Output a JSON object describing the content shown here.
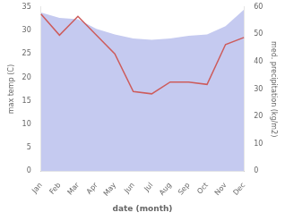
{
  "chart_data": {
    "type": "line",
    "categories": [
      "Jan",
      "Feb",
      "Mar",
      "Apr",
      "May",
      "Jun",
      "Jul",
      "Aug",
      "Sep",
      "Oct",
      "Nov",
      "Dec"
    ],
    "series": [
      {
        "color": "#cd5c5c",
        "marker": "none",
        "values": [
          33.5,
          29.0,
          33.0,
          29.0,
          25.0,
          17.0,
          16.5,
          19.0,
          19.0,
          18.5,
          27.0,
          28.5
        ]
      },
      {
        "type": "area",
        "axis": "y2",
        "color": "#c5caf0",
        "values": [
          58.0,
          56.0,
          55.5,
          52.0,
          50.0,
          48.5,
          48.0,
          48.5,
          49.5,
          50.0,
          53.0,
          59.0
        ]
      }
    ],
    "xlabel": "date (month)",
    "ylabel": "max temp (C)",
    "y2label": "med. precipitation (kg/m2)",
    "ylim": [
      0,
      35
    ],
    "yticks": [
      0,
      5,
      10,
      15,
      20,
      25,
      30,
      35
    ],
    "y2lim": [
      0,
      60
    ],
    "y2ticks": [
      0,
      10,
      20,
      30,
      40,
      50,
      60
    ],
    "grid": false
  }
}
